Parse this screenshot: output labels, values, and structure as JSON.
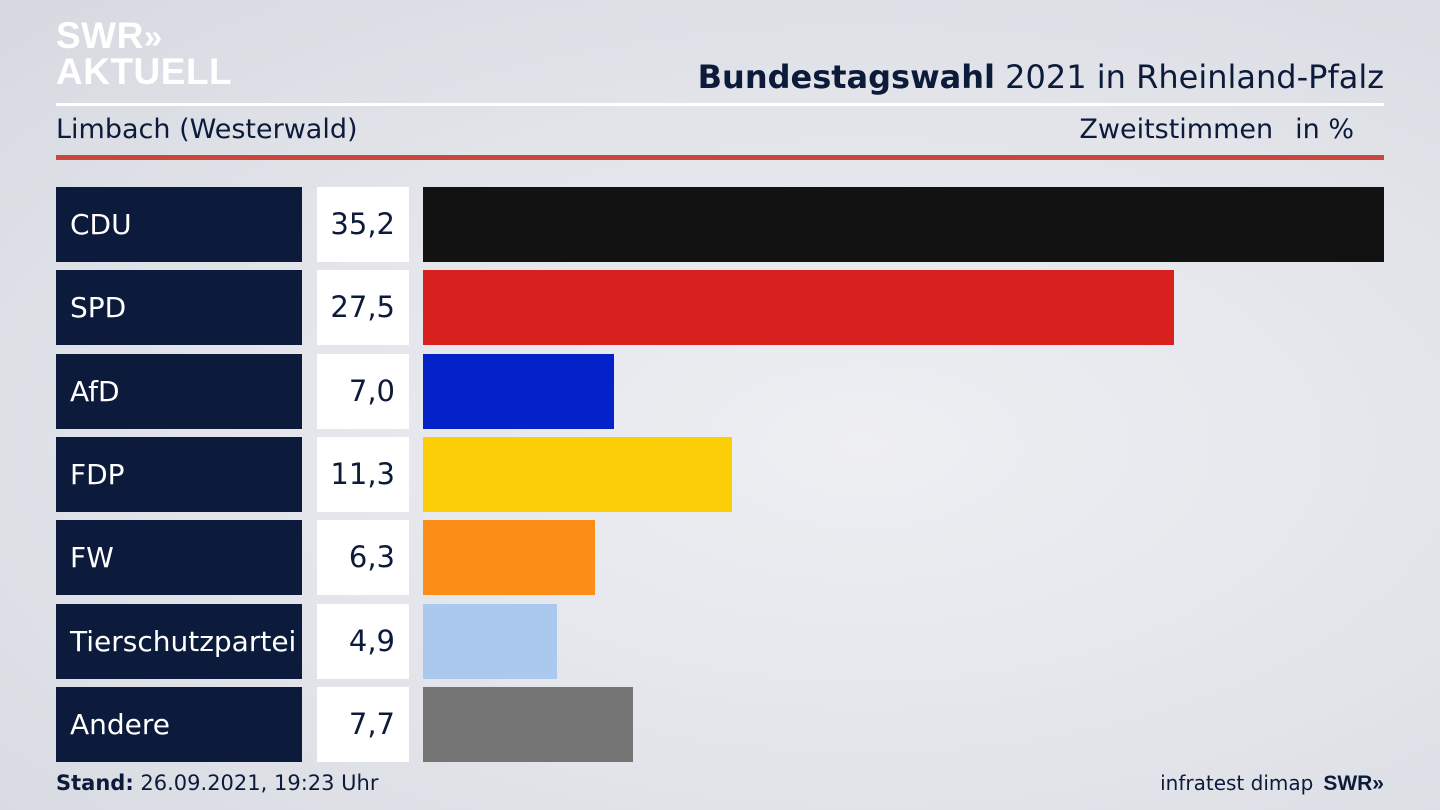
{
  "brand": {
    "line1": "SWR",
    "line1_chevrons": "»",
    "line2": "AKTUELL"
  },
  "header": {
    "title_bold": "Bundestagswahl",
    "title_rest": " 2021 in Rheinland-Pfalz",
    "location": "Limbach (Westerwald)",
    "measure": "Zweitstimmen",
    "unit": "in %"
  },
  "chart_data": {
    "type": "bar",
    "orientation": "horizontal",
    "categories": [
      "CDU",
      "SPD",
      "AfD",
      "FDP",
      "FW",
      "Tierschutzpartei",
      "Andere"
    ],
    "values": [
      35.2,
      27.5,
      7.0,
      11.3,
      6.3,
      4.9,
      7.7
    ],
    "value_labels": [
      "35,2",
      "27,5",
      "7,0",
      "11,3",
      "6,3",
      "4,9",
      "7,7"
    ],
    "colors": [
      "#121212",
      "#d8201e",
      "#0323c8",
      "#fcce07",
      "#fb8e17",
      "#abc8ef",
      "#757576"
    ],
    "max_value": 35.2
  },
  "footer": {
    "stand_label": "Stand:",
    "stand_value": " 26.09.2021, 19:23 Uhr",
    "source": "infratest dimap",
    "swr": "SWR»"
  }
}
